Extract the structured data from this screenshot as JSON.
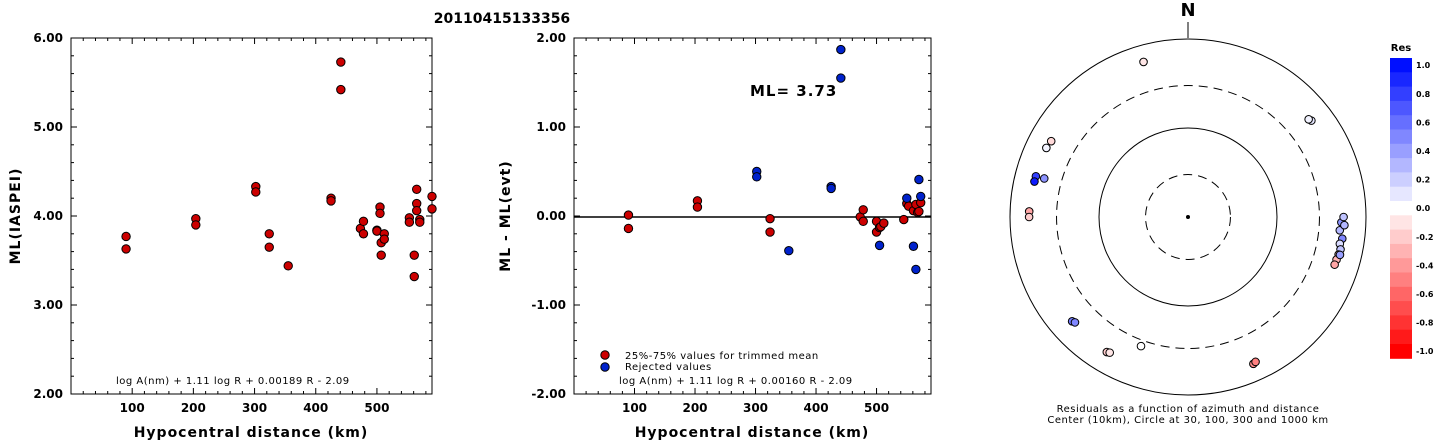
{
  "title": "20110415133356",
  "chart_data": [
    {
      "type": "scatter",
      "ylabel": "ML(IASPEI)",
      "xlabel": "Hypocentral distance (km)",
      "xlim": [
        0,
        590
      ],
      "ylim": [
        2.0,
        6.0
      ],
      "xticks": [
        100,
        200,
        300,
        400,
        500
      ],
      "yticks": [
        2.0,
        3.0,
        4.0,
        5.0,
        6.0
      ],
      "ytick_labels": [
        "2.00",
        "3.00",
        "4.00",
        "5.00",
        "6.00"
      ],
      "formula": "log A(nm) + 1.11 log R + 0.00189 R - 2.09",
      "points_color": "#cc0000",
      "points": [
        [
          90,
          3.77
        ],
        [
          90,
          3.63
        ],
        [
          204,
          3.97
        ],
        [
          204,
          3.9
        ],
        [
          302,
          4.33
        ],
        [
          302,
          4.27
        ],
        [
          324,
          3.8
        ],
        [
          324,
          3.65
        ],
        [
          355,
          3.44
        ],
        [
          425,
          4.2
        ],
        [
          425,
          4.17
        ],
        [
          441,
          5.73
        ],
        [
          441,
          5.42
        ],
        [
          473,
          3.86
        ],
        [
          478,
          3.94
        ],
        [
          478,
          3.8
        ],
        [
          500,
          3.84
        ],
        [
          500,
          3.83
        ],
        [
          505,
          4.1
        ],
        [
          505,
          4.03
        ],
        [
          507,
          3.7
        ],
        [
          507,
          3.56
        ],
        [
          512,
          3.8
        ],
        [
          512,
          3.74
        ],
        [
          553,
          3.98
        ],
        [
          553,
          3.93
        ],
        [
          561,
          3.56
        ],
        [
          561,
          3.32
        ],
        [
          565,
          4.3
        ],
        [
          565,
          4.14
        ],
        [
          565,
          4.06
        ],
        [
          570,
          3.96
        ],
        [
          570,
          3.93
        ],
        [
          590,
          4.22
        ],
        [
          590,
          4.08
        ]
      ]
    },
    {
      "type": "scatter",
      "ylabel": "ML - ML(evt)",
      "xlabel": "Hypocentral distance (km)",
      "xlim": [
        0,
        590
      ],
      "ylim": [
        -2.0,
        2.0
      ],
      "xticks": [
        100,
        200,
        300,
        400,
        500
      ],
      "yticks": [
        -2.0,
        -1.0,
        0.0,
        1.0,
        2.0
      ],
      "ytick_labels": [
        "-2.00",
        "-1.00",
        "0.00",
        "1.00",
        "2.00"
      ],
      "ml_label": "ML= 3.73",
      "formula": "log A(nm) + 1.11 log R + 0.00160 R - 2.09",
      "legend": [
        {
          "label": "25%-75% values for trimmed mean",
          "color": "#cc0000"
        },
        {
          "label": "Rejected values",
          "color": "#0022cc"
        }
      ],
      "series": [
        {
          "name": "25%-75% values for trimmed mean",
          "color": "#cc0000",
          "points": [
            [
              90,
              0.01
            ],
            [
              90,
              -0.14
            ],
            [
              204,
              0.17
            ],
            [
              204,
              0.1
            ],
            [
              324,
              -0.03
            ],
            [
              324,
              -0.18
            ],
            [
              473,
              -0.01
            ],
            [
              478,
              0.07
            ],
            [
              478,
              -0.06
            ],
            [
              500,
              -0.06
            ],
            [
              500,
              -0.18
            ],
            [
              505,
              -0.13
            ],
            [
              507,
              -0.12
            ],
            [
              512,
              -0.08
            ],
            [
              545,
              -0.04
            ],
            [
              550,
              0.14
            ],
            [
              553,
              0.11
            ],
            [
              561,
              0.06
            ],
            [
              565,
              0.13
            ],
            [
              568,
              0.04
            ],
            [
              570,
              0.05
            ],
            [
              573,
              0.15
            ]
          ]
        },
        {
          "name": "Rejected values",
          "color": "#0022cc",
          "points": [
            [
              302,
              0.5
            ],
            [
              302,
              0.44
            ],
            [
              355,
              -0.39
            ],
            [
              425,
              0.33
            ],
            [
              425,
              0.31
            ],
            [
              441,
              1.87
            ],
            [
              441,
              1.55
            ],
            [
              505,
              -0.33
            ],
            [
              550,
              0.2
            ],
            [
              561,
              -0.34
            ],
            [
              565,
              -0.6
            ],
            [
              570,
              0.41
            ],
            [
              573,
              0.22
            ]
          ]
        }
      ]
    },
    {
      "type": "scatter",
      "subtype": "polar residual plot",
      "north_label": "N",
      "caption_line1": "Residuals as a function of azimuth and distance",
      "caption_line2": "Center (10km), Circle at 30, 100, 300 and 1000 km",
      "rings_km": [
        30,
        100,
        300,
        1000
      ],
      "rings_style": [
        "dashed",
        "solid",
        "dashed",
        "solid"
      ],
      "colorbar": {
        "title": "Res",
        "min": -1.0,
        "max": 1.0,
        "labels": [
          "1.0",
          "0.8",
          "0.6",
          "0.4",
          "0.2",
          "0.0",
          "-0.2",
          "-0.4",
          "-0.6",
          "-0.8",
          "-1.0"
        ],
        "positive_color": "#0010ff",
        "negative_color": "#ff0000"
      },
      "stations": [
        {
          "az": 344,
          "dist": 650,
          "res": -0.1
        },
        {
          "az": 299,
          "dist": 572,
          "res": -0.15
        },
        {
          "az": 296,
          "dist": 590,
          "res": 0.05
        },
        {
          "az": 285,
          "dist": 588,
          "res": 0.8
        },
        {
          "az": 283,
          "dist": 590,
          "res": 0.95
        },
        {
          "az": 285,
          "dist": 470,
          "res": 0.45
        },
        {
          "az": 272,
          "dist": 610,
          "res": -0.35
        },
        {
          "az": 270,
          "dist": 610,
          "res": -0.2
        },
        {
          "az": 52,
          "dist": 574,
          "res": 0.1
        },
        {
          "az": 51,
          "dist": 555,
          "res": 0.05
        },
        {
          "az": 95,
          "dist": 515,
          "res": 0.3
        },
        {
          "az": 92,
          "dist": 530,
          "res": 0.45
        },
        {
          "az": 90,
          "dist": 560,
          "res": 0.25
        },
        {
          "az": 93,
          "dist": 575,
          "res": 0.3
        },
        {
          "az": 98,
          "dist": 563,
          "res": 0.5
        },
        {
          "az": 100,
          "dist": 540,
          "res": 0.15
        },
        {
          "az": 102,
          "dist": 565,
          "res": 0.25
        },
        {
          "az": 104,
          "dist": 555,
          "res": -0.2
        },
        {
          "az": 106,
          "dist": 545,
          "res": -0.3
        },
        {
          "az": 108,
          "dist": 540,
          "res": -0.35
        },
        {
          "az": 104,
          "dist": 575,
          "res": 0.4
        },
        {
          "az": 200,
          "dist": 350,
          "res": 0.0
        },
        {
          "az": 228,
          "dist": 565,
          "res": 0.55
        },
        {
          "az": 227,
          "dist": 545,
          "res": 0.5
        },
        {
          "az": 211,
          "dist": 590,
          "res": -0.2
        },
        {
          "az": 210,
          "dist": 575,
          "res": -0.1
        },
        {
          "az": 156,
          "dist": 640,
          "res": -0.45
        },
        {
          "az": 155,
          "dist": 625,
          "res": -0.5
        }
      ]
    }
  ]
}
